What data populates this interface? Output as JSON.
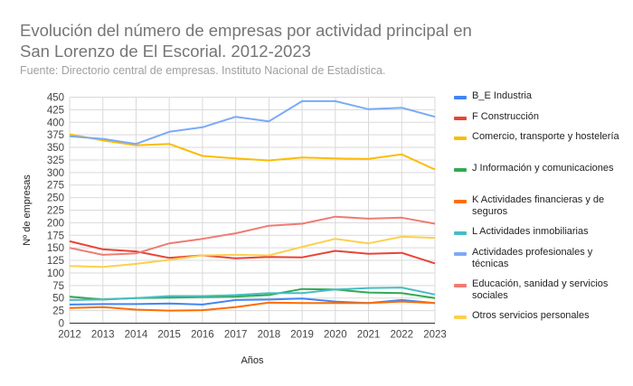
{
  "chart_data": {
    "type": "line",
    "title": "Evolución del número de empresas por actividad principal en San Lorenzo de El Escorial. 2012-2023",
    "subtitle": "Fuente: Directorio central de empresas. Instituto Nacional de Estadística.",
    "xlabel": "Años",
    "ylabel": "Nº de empresas",
    "ylim": [
      0,
      450
    ],
    "yticks": [
      0,
      25,
      50,
      75,
      100,
      125,
      150,
      175,
      200,
      225,
      250,
      275,
      300,
      325,
      350,
      375,
      400,
      425,
      450
    ],
    "x": [
      "2012",
      "2013",
      "2014",
      "2015",
      "2016",
      "2017",
      "2018",
      "2019",
      "2020",
      "2021",
      "2022",
      "2023"
    ],
    "grid": true,
    "legend_position": "right",
    "series": [
      {
        "name": "B_E Industria",
        "color": "#4285F4",
        "values": [
          37,
          38,
          38,
          39,
          37,
          46,
          47,
          49,
          43,
          40,
          46,
          40
        ]
      },
      {
        "name": "F Construcción",
        "color": "#EA4335",
        "values": [
          163,
          147,
          143,
          130,
          135,
          129,
          132,
          131,
          144,
          138,
          140,
          119
        ]
      },
      {
        "name": "Comercio, transporte y hostelería",
        "color": "#FBBC04",
        "values": [
          376,
          364,
          354,
          357,
          333,
          328,
          324,
          330,
          328,
          327,
          336,
          306
        ]
      },
      {
        "name": "J Información y comunicaciones",
        "color": "#34A853",
        "values": [
          53,
          47,
          50,
          51,
          52,
          53,
          56,
          68,
          67,
          61,
          60,
          50
        ]
      },
      {
        "name": "K Actividades financieras y de seguros",
        "color": "#FF6D01",
        "values": [
          30,
          32,
          27,
          25,
          26,
          32,
          41,
          40,
          40,
          40,
          43,
          40
        ]
      },
      {
        "name": "L Actividades inmobiliarias",
        "color": "#46BDC6",
        "values": [
          46,
          47,
          50,
          54,
          54,
          56,
          60,
          60,
          67,
          70,
          71,
          57
        ]
      },
      {
        "name": "Actividades profesionales y técnicas",
        "color": "#7BAAF7",
        "values": [
          372,
          367,
          357,
          381,
          390,
          411,
          402,
          442,
          442,
          426,
          429,
          411
        ]
      },
      {
        "name": "Educación, sanidad y servicios sociales",
        "color": "#F07B72",
        "values": [
          150,
          136,
          139,
          159,
          168,
          179,
          194,
          198,
          212,
          208,
          210,
          198
        ]
      },
      {
        "name": "Otros servicios personales",
        "color": "#FCD04F",
        "values": [
          114,
          112,
          118,
          126,
          135,
          136,
          135,
          152,
          168,
          159,
          172,
          170
        ]
      }
    ]
  }
}
